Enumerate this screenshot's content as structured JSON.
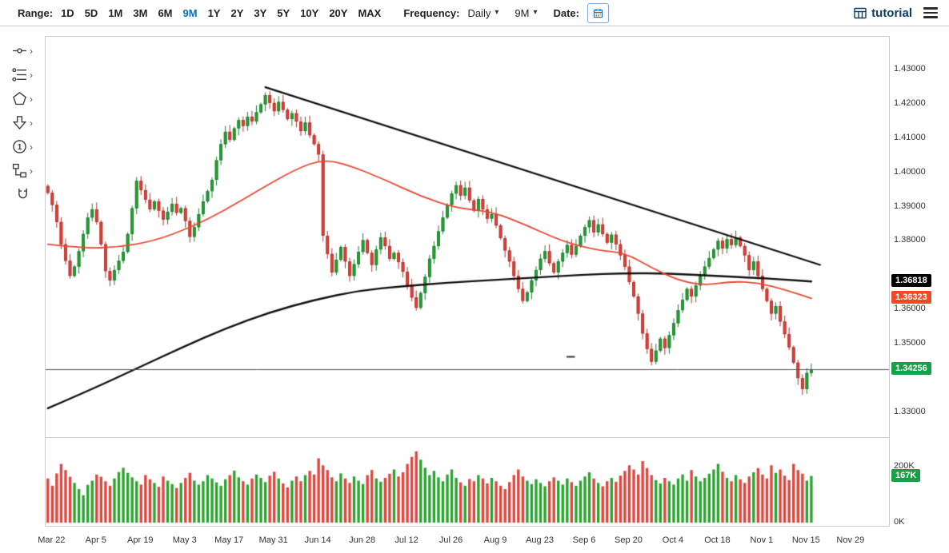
{
  "toolbar": {
    "range_label": "Range:",
    "ranges": [
      "1D",
      "5D",
      "1M",
      "3M",
      "6M",
      "9M",
      "1Y",
      "2Y",
      "3Y",
      "5Y",
      "10Y",
      "20Y",
      "MAX"
    ],
    "active_range": "9M",
    "frequency_label": "Frequency:",
    "frequency_value": "Daily",
    "range_dropdown_value": "9M",
    "date_label": "Date:",
    "brand": "tutorial"
  },
  "side_toolbar": {
    "tools": [
      {
        "name": "trendline-tool",
        "icon": "trendline-icon",
        "chevron": true
      },
      {
        "name": "fibonacci-tool",
        "icon": "fibonacci-icon",
        "chevron": true
      },
      {
        "name": "shapes-tool",
        "icon": "shapes-icon",
        "chevron": true
      },
      {
        "name": "arrow-tool",
        "icon": "arrow-down-icon",
        "chevron": true
      },
      {
        "name": "number-annotation-tool",
        "icon": "number-one-icon",
        "chevron": true
      },
      {
        "name": "flowchart-tool",
        "icon": "flowchart-icon",
        "chevron": true
      },
      {
        "name": "magnet-tool",
        "icon": "magnet-icon",
        "chevron": false
      }
    ]
  },
  "axis_badges": [
    {
      "name": "ma-slow-badge",
      "label": "1.36818",
      "value": 1.36818,
      "bg": "#000000",
      "pane": "price"
    },
    {
      "name": "ma-fast-badge",
      "label": "1.36323",
      "value": 1.36323,
      "bg": "#f04923",
      "pane": "price"
    },
    {
      "name": "last-price-badge",
      "label": "1.34256",
      "value": 1.34256,
      "bg": "#18a048",
      "pane": "price"
    },
    {
      "name": "last-volume-badge",
      "label": "167K",
      "value": 167,
      "bg": "#18a048",
      "pane": "volume"
    }
  ],
  "chart_data": {
    "type": "candlestick",
    "frequency": "Daily",
    "range": "9M",
    "date_ticks": [
      "Mar 22",
      "Apr 5",
      "Apr 19",
      "May 3",
      "May 17",
      "May 31",
      "Jun 14",
      "Jun 28",
      "Jul 12",
      "Jul 26",
      "Aug 9",
      "Aug 23",
      "Sep 6",
      "Sep 20",
      "Oct 4",
      "Oct 18",
      "Nov 1",
      "Nov 15",
      "Nov 29"
    ],
    "price_axis": {
      "min": 1.3228,
      "max": 1.4395,
      "tick_labels": [
        {
          "label": "1.43000",
          "value": 1.43
        },
        {
          "label": "1.42000",
          "value": 1.42
        },
        {
          "label": "1.41000",
          "value": 1.41
        },
        {
          "label": "1.40000",
          "value": 1.4
        },
        {
          "label": "1.39000",
          "value": 1.39
        },
        {
          "label": "1.38000",
          "value": 1.38
        },
        {
          "label": "1.36000",
          "value": 1.36
        },
        {
          "label": "1.35000",
          "value": 1.35
        },
        {
          "label": "1.33000",
          "value": 1.33
        }
      ]
    },
    "volume_axis": {
      "ticks": [
        {
          "label": "200K",
          "value": 200
        },
        {
          "label": "0K",
          "value": 0
        }
      ]
    },
    "first_open": 1.396,
    "closes": [
      1.394,
      1.3905,
      1.3855,
      1.379,
      1.3742,
      1.3698,
      1.3725,
      1.377,
      1.382,
      1.3868,
      1.3892,
      1.3855,
      1.379,
      1.3712,
      1.3685,
      1.3715,
      1.3742,
      1.3768,
      1.382,
      1.3895,
      1.3975,
      1.3948,
      1.392,
      1.3892,
      1.3915,
      1.3888,
      1.3862,
      1.3885,
      1.3908,
      1.3882,
      1.3895,
      1.3858,
      1.3812,
      1.384,
      1.3878,
      1.3915,
      1.3945,
      1.3978,
      1.4035,
      1.4082,
      1.4118,
      1.4095,
      1.4128,
      1.4152,
      1.4135,
      1.4162,
      1.4148,
      1.4175,
      1.4198,
      1.4225,
      1.4202,
      1.4178,
      1.4205,
      1.4182,
      1.4155,
      1.4172,
      1.4148,
      1.412,
      1.4145,
      1.4108,
      1.4082,
      1.4052,
      1.3815,
      1.3762,
      1.3708,
      1.3745,
      1.3782,
      1.374,
      1.3698,
      1.3732,
      1.3768,
      1.3802,
      1.3765,
      1.373,
      1.3775,
      1.381,
      1.3785,
      1.3748,
      1.3765,
      1.3738,
      1.371,
      1.3672,
      1.3635,
      1.3605,
      1.3648,
      1.3695,
      1.3748,
      1.3785,
      1.3828,
      1.3868,
      1.3905,
      1.3938,
      1.3962,
      1.3932,
      1.3955,
      1.3918,
      1.3888,
      1.3922,
      1.3892,
      1.3865,
      1.3878,
      1.3845,
      1.3808,
      1.3772,
      1.374,
      1.3698,
      1.366,
      1.3625,
      1.365,
      1.3685,
      1.3715,
      1.3748,
      1.377,
      1.3735,
      1.3708,
      1.374,
      1.3765,
      1.3788,
      1.376,
      1.3785,
      1.3815,
      1.384,
      1.386,
      1.3825,
      1.3848,
      1.382,
      1.3795,
      1.3818,
      1.379,
      1.3758,
      1.3725,
      1.368,
      1.3638,
      1.3588,
      1.353,
      1.3485,
      1.3448,
      1.348,
      1.3515,
      1.3488,
      1.3525,
      1.356,
      1.3598,
      1.3628,
      1.366,
      1.3638,
      1.367,
      1.3698,
      1.3725,
      1.375,
      1.3775,
      1.38,
      1.3778,
      1.3805,
      1.3788,
      1.381,
      1.3785,
      1.3758,
      1.3715,
      1.374,
      1.3698,
      1.366,
      1.3625,
      1.3588,
      1.361,
      1.3565,
      1.3528,
      1.349,
      1.3445,
      1.34,
      1.3368,
      1.3415,
      1.34256
    ],
    "volumes_k": [
      158,
      132,
      176,
      210,
      188,
      164,
      142,
      120,
      98,
      135,
      150,
      172,
      164,
      148,
      132,
      158,
      181,
      196,
      178,
      162,
      148,
      136,
      170,
      155,
      142,
      128,
      165,
      150,
      138,
      124,
      142,
      160,
      178,
      150,
      136,
      148,
      170,
      158,
      144,
      132,
      155,
      170,
      186,
      162,
      148,
      136,
      158,
      172,
      160,
      145,
      168,
      182,
      158,
      140,
      126,
      150,
      165,
      148,
      170,
      185,
      172,
      230,
      205,
      188,
      162,
      148,
      176,
      158,
      142,
      165,
      150,
      138,
      170,
      188,
      158,
      146,
      160,
      175,
      190,
      165,
      180,
      210,
      235,
      255,
      225,
      196,
      170,
      185,
      162,
      148,
      172,
      190,
      160,
      144,
      132,
      156,
      148,
      170,
      158,
      140,
      160,
      148,
      132,
      120,
      145,
      170,
      190,
      165,
      150,
      138,
      155,
      142,
      130,
      148,
      162,
      150,
      136,
      158,
      145,
      132,
      150,
      165,
      180,
      158,
      142,
      130,
      148,
      160,
      146,
      168,
      185,
      205,
      190,
      172,
      220,
      195,
      170,
      152,
      140,
      160,
      148,
      136,
      158,
      172,
      150,
      188,
      165,
      148,
      160,
      175,
      190,
      210,
      182,
      160,
      148,
      170,
      155,
      142,
      165,
      180,
      195,
      172,
      158,
      205,
      178,
      190,
      168,
      152,
      210,
      188,
      175,
      150,
      167
    ],
    "ma_fast": {
      "color": "#e8472f",
      "last_label": "1.36323",
      "points": [
        [
          0,
          1.379
        ],
        [
          8,
          1.3778
        ],
        [
          16,
          1.3782
        ],
        [
          24,
          1.38
        ],
        [
          32,
          1.3838
        ],
        [
          40,
          1.389
        ],
        [
          48,
          1.3952
        ],
        [
          56,
          1.401
        ],
        [
          62,
          1.4038
        ],
        [
          68,
          1.402
        ],
        [
          76,
          1.3978
        ],
        [
          84,
          1.393
        ],
        [
          92,
          1.3895
        ],
        [
          100,
          1.3886
        ],
        [
          108,
          1.3845
        ],
        [
          116,
          1.3798
        ],
        [
          124,
          1.3772
        ],
        [
          130,
          1.3765
        ],
        [
          136,
          1.3722
        ],
        [
          142,
          1.3685
        ],
        [
          148,
          1.367
        ],
        [
          154,
          1.3682
        ],
        [
          160,
          1.3678
        ],
        [
          166,
          1.3658
        ],
        [
          172,
          1.36323
        ]
      ]
    },
    "ma_slow": {
      "color": "#111111",
      "last_label": "1.36818",
      "points": [
        [
          0,
          1.3312
        ],
        [
          10,
          1.3368
        ],
        [
          20,
          1.3428
        ],
        [
          30,
          1.3488
        ],
        [
          40,
          1.3545
        ],
        [
          50,
          1.3592
        ],
        [
          60,
          1.3628
        ],
        [
          70,
          1.3655
        ],
        [
          80,
          1.3668
        ],
        [
          90,
          1.3678
        ],
        [
          100,
          1.3686
        ],
        [
          110,
          1.3693
        ],
        [
          120,
          1.3701
        ],
        [
          130,
          1.3706
        ],
        [
          140,
          1.3705
        ],
        [
          150,
          1.3698
        ],
        [
          160,
          1.3692
        ],
        [
          166,
          1.3687
        ],
        [
          172,
          1.36818
        ]
      ]
    },
    "trendline": {
      "from": [
        49,
        1.4248
      ],
      "to": [
        174,
        1.373
      ]
    },
    "support_line": {
      "price": 1.34256
    },
    "last_price": {
      "label": "1.34256",
      "value": 1.34256
    },
    "last_volume": {
      "label": "167K",
      "value": 167
    },
    "annotations": [
      {
        "type": "dash",
        "slot": 117,
        "price": 1.3462,
        "length_slots": 1.6
      }
    ],
    "colors": {
      "up": "#2aa32e",
      "up_border": "#1d7d33",
      "down": "#e0443c",
      "down_border": "#b33129",
      "axis_text": "#333333",
      "accent": "#0a6ebd"
    }
  }
}
